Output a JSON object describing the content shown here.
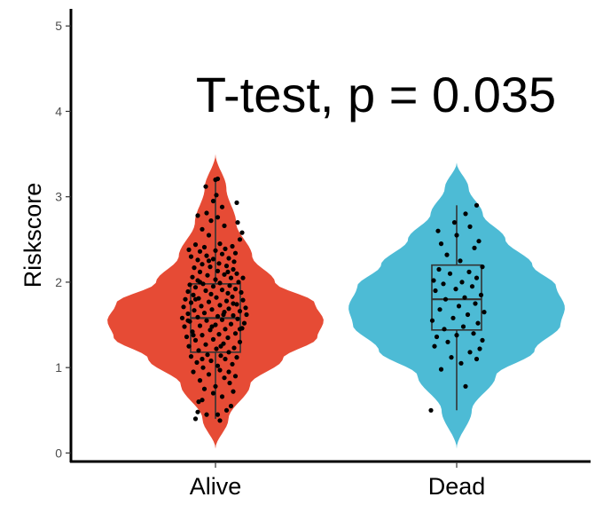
{
  "chart_data": {
    "type": "violin",
    "title": "",
    "annotation": "T-test, p = 0.035",
    "xlabel": "",
    "ylabel": "Riskscore",
    "ylim": [
      -0.1,
      5.2
    ],
    "yticks": [
      "0",
      "1",
      "2",
      "3",
      "4",
      "5"
    ],
    "categories": [
      "Alive",
      "Dead"
    ],
    "grid": false,
    "legend": "none",
    "groups": [
      {
        "category": "Alive",
        "color": "#E64B35",
        "violin_min": 0.05,
        "violin_max": 3.5,
        "box": {
          "whisker_low": 0.4,
          "q1": 1.18,
          "median": 1.58,
          "q3": 1.98,
          "whisker_high": 3.2
        },
        "points": [
          [
            -0.45,
            0.4
          ],
          [
            -0.4,
            0.48
          ],
          [
            -0.38,
            0.6
          ],
          [
            -0.2,
            0.45
          ],
          [
            0.1,
            0.38
          ],
          [
            0.25,
            0.5
          ],
          [
            0.05,
            0.45
          ],
          [
            -0.3,
            0.62
          ],
          [
            0.15,
            0.66
          ],
          [
            0.35,
            0.55
          ],
          [
            -0.05,
            0.7
          ],
          [
            -0.25,
            0.75
          ],
          [
            0.4,
            0.72
          ],
          [
            0.0,
            0.78
          ],
          [
            -0.35,
            0.85
          ],
          [
            0.2,
            0.88
          ],
          [
            0.32,
            0.82
          ],
          [
            -0.15,
            0.92
          ],
          [
            0.45,
            0.9
          ],
          [
            -0.5,
            0.95
          ],
          [
            0.1,
            0.97
          ],
          [
            -0.28,
            1.0
          ],
          [
            0.05,
            1.02
          ],
          [
            0.38,
            1.04
          ],
          [
            -0.42,
            1.06
          ],
          [
            -0.1,
            1.08
          ],
          [
            0.22,
            1.1
          ],
          [
            0.48,
            1.12
          ],
          [
            -0.55,
            1.13
          ],
          [
            -0.18,
            1.15
          ],
          [
            0.12,
            1.14
          ],
          [
            0.3,
            1.18
          ],
          [
            -0.38,
            1.2
          ],
          [
            0.02,
            1.22
          ],
          [
            0.42,
            1.23
          ],
          [
            -0.6,
            1.25
          ],
          [
            -0.22,
            1.27
          ],
          [
            0.18,
            1.28
          ],
          [
            0.55,
            1.3
          ],
          [
            -0.45,
            1.32
          ],
          [
            -0.05,
            1.33
          ],
          [
            0.28,
            1.35
          ],
          [
            -0.65,
            1.36
          ],
          [
            -0.3,
            1.38
          ],
          [
            0.08,
            1.39
          ],
          [
            0.45,
            1.4
          ],
          [
            -0.52,
            1.42
          ],
          [
            -0.12,
            1.44
          ],
          [
            0.22,
            1.45
          ],
          [
            0.6,
            1.46
          ],
          [
            -0.7,
            1.48
          ],
          [
            -0.35,
            1.49
          ],
          [
            0.0,
            1.5
          ],
          [
            0.35,
            1.51
          ],
          [
            0.65,
            1.52
          ],
          [
            -0.58,
            1.54
          ],
          [
            -0.2,
            1.55
          ],
          [
            0.15,
            1.56
          ],
          [
            0.5,
            1.57
          ],
          [
            -0.75,
            1.58
          ],
          [
            -0.4,
            1.59
          ],
          [
            0.05,
            1.6
          ],
          [
            0.4,
            1.61
          ],
          [
            0.7,
            1.62
          ],
          [
            -0.62,
            1.63
          ],
          [
            -0.25,
            1.64
          ],
          [
            0.2,
            1.65
          ],
          [
            0.55,
            1.66
          ],
          [
            -0.48,
            1.67
          ],
          [
            -0.08,
            1.68
          ],
          [
            0.3,
            1.69
          ],
          [
            0.68,
            1.7
          ],
          [
            -0.72,
            1.71
          ],
          [
            -0.32,
            1.72
          ],
          [
            0.1,
            1.73
          ],
          [
            0.48,
            1.74
          ],
          [
            -0.55,
            1.76
          ],
          [
            -0.15,
            1.77
          ],
          [
            0.25,
            1.78
          ],
          [
            0.62,
            1.79
          ],
          [
            -0.68,
            1.8
          ],
          [
            -0.38,
            1.81
          ],
          [
            0.02,
            1.82
          ],
          [
            0.38,
            1.83
          ],
          [
            -0.5,
            1.85
          ],
          [
            -0.1,
            1.86
          ],
          [
            0.28,
            1.87
          ],
          [
            0.58,
            1.88
          ],
          [
            -0.62,
            1.89
          ],
          [
            -0.22,
            1.9
          ],
          [
            0.15,
            1.91
          ],
          [
            0.45,
            1.92
          ],
          [
            -0.45,
            1.94
          ],
          [
            -0.05,
            1.95
          ],
          [
            0.32,
            1.96
          ],
          [
            -0.58,
            1.97
          ],
          [
            -0.28,
            1.98
          ],
          [
            0.1,
            1.99
          ],
          [
            0.52,
            2.0
          ],
          [
            -0.4,
            2.02
          ],
          [
            0.0,
            2.03
          ],
          [
            0.35,
            2.05
          ],
          [
            -0.52,
            2.06
          ],
          [
            -0.18,
            2.08
          ],
          [
            0.2,
            2.09
          ],
          [
            0.48,
            2.1
          ],
          [
            -0.35,
            2.12
          ],
          [
            0.05,
            2.13
          ],
          [
            0.4,
            2.15
          ],
          [
            -0.48,
            2.17
          ],
          [
            -0.12,
            2.18
          ],
          [
            0.25,
            2.19
          ],
          [
            -0.3,
            2.21
          ],
          [
            0.08,
            2.22
          ],
          [
            0.42,
            2.24
          ],
          [
            -0.4,
            2.26
          ],
          [
            -0.05,
            2.27
          ],
          [
            0.3,
            2.28
          ],
          [
            -0.55,
            2.3
          ],
          [
            -0.2,
            2.31
          ],
          [
            0.15,
            2.33
          ],
          [
            0.45,
            2.34
          ],
          [
            -0.35,
            2.36
          ],
          [
            0.0,
            2.37
          ],
          [
            0.22,
            2.39
          ],
          [
            -0.6,
            2.38
          ],
          [
            -0.25,
            2.41
          ],
          [
            0.38,
            2.42
          ],
          [
            -0.45,
            2.44
          ],
          [
            0.1,
            2.45
          ],
          [
            0.55,
            2.5
          ],
          [
            -0.15,
            2.55
          ],
          [
            0.6,
            2.58
          ],
          [
            -0.3,
            2.62
          ],
          [
            0.2,
            2.66
          ],
          [
            0.5,
            2.7
          ],
          [
            -0.1,
            2.72
          ],
          [
            0.05,
            2.76
          ],
          [
            -0.4,
            2.78
          ],
          [
            -0.2,
            2.81
          ],
          [
            0.15,
            2.88
          ],
          [
            -0.05,
            2.95
          ],
          [
            0.48,
            2.93
          ],
          [
            0.02,
            3.02
          ],
          [
            -0.22,
            3.12
          ],
          [
            0.0,
            3.2
          ],
          [
            0.05,
            3.21
          ],
          [
            -0.3,
            1.1
          ],
          [
            0.3,
            0.95
          ],
          [
            -0.45,
            1.8
          ],
          [
            0.55,
            1.45
          ],
          [
            0.62,
            2.05
          ],
          [
            -0.62,
            1.55
          ],
          [
            0.12,
            1.25
          ],
          [
            -0.08,
            1.48
          ],
          [
            0.18,
            1.62
          ],
          [
            -0.35,
            2.0
          ],
          [
            0.4,
            1.75
          ],
          [
            -0.15,
            2.25
          ],
          [
            0.28,
            2.12
          ],
          [
            -0.5,
            1.38
          ]
        ]
      },
      {
        "category": "Dead",
        "color": "#4DBBD5",
        "violin_min": 0.05,
        "violin_max": 3.4,
        "box": {
          "whisker_low": 0.5,
          "q1": 1.44,
          "median": 1.8,
          "q3": 2.2,
          "whisker_high": 2.9
        },
        "points": [
          [
            -0.58,
            0.5
          ],
          [
            0.2,
            0.78
          ],
          [
            -0.35,
            0.98
          ],
          [
            0.1,
            1.05
          ],
          [
            0.45,
            1.1
          ],
          [
            -0.12,
            1.12
          ],
          [
            0.3,
            1.18
          ],
          [
            -0.5,
            1.25
          ],
          [
            0.52,
            1.22
          ],
          [
            -0.2,
            1.3
          ],
          [
            0.58,
            1.32
          ],
          [
            -0.45,
            1.36
          ],
          [
            0.0,
            1.38
          ],
          [
            0.38,
            1.4
          ],
          [
            -0.28,
            1.45
          ],
          [
            0.15,
            1.48
          ],
          [
            0.48,
            1.52
          ],
          [
            -0.55,
            1.55
          ],
          [
            -0.08,
            1.58
          ],
          [
            0.25,
            1.62
          ],
          [
            0.62,
            1.65
          ],
          [
            -0.38,
            1.68
          ],
          [
            0.05,
            1.72
          ],
          [
            0.42,
            1.75
          ],
          [
            -0.25,
            1.8
          ],
          [
            0.18,
            1.82
          ],
          [
            0.55,
            1.85
          ],
          [
            -0.48,
            1.9
          ],
          [
            -0.02,
            1.92
          ],
          [
            0.35,
            1.95
          ],
          [
            -0.3,
            1.98
          ],
          [
            0.12,
            2.0
          ],
          [
            -0.52,
            2.02
          ],
          [
            0.45,
            2.05
          ],
          [
            -0.15,
            2.1
          ],
          [
            0.28,
            2.12
          ],
          [
            -0.4,
            2.15
          ],
          [
            0.58,
            2.18
          ],
          [
            0.08,
            2.25
          ],
          [
            -0.22,
            2.32
          ],
          [
            0.4,
            2.4
          ],
          [
            -0.35,
            2.45
          ],
          [
            0.5,
            2.48
          ],
          [
            0.0,
            2.55
          ],
          [
            -0.42,
            2.6
          ],
          [
            0.3,
            2.65
          ],
          [
            -0.05,
            2.7
          ],
          [
            0.2,
            2.8
          ],
          [
            0.45,
            2.9
          ]
        ]
      }
    ]
  }
}
